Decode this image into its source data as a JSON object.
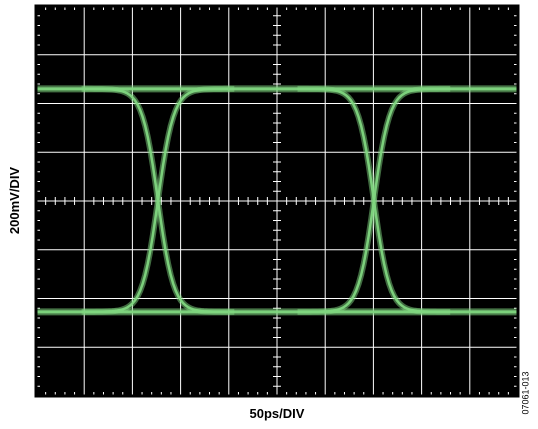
{
  "chart_data": {
    "type": "line",
    "title": "",
    "xlabel": "50ps/DIV",
    "ylabel": "200mV/DIV",
    "figure_id": "07061-013",
    "grid": true,
    "background": "#000000",
    "trace_color": "#7fd67f",
    "grid_color": "#ffffff",
    "divisions": {
      "x": 10,
      "y": 8
    },
    "time_per_div_ps": 50,
    "voltage_per_div_mV": 200,
    "xlim_ps": [
      0,
      500
    ],
    "ylim_mV": [
      -800,
      800
    ],
    "high_level_mV": 460,
    "low_level_mV": -455,
    "crossings_ps": [
      126.5,
      350.5
    ],
    "rise_fall_time_ps": 36
  }
}
